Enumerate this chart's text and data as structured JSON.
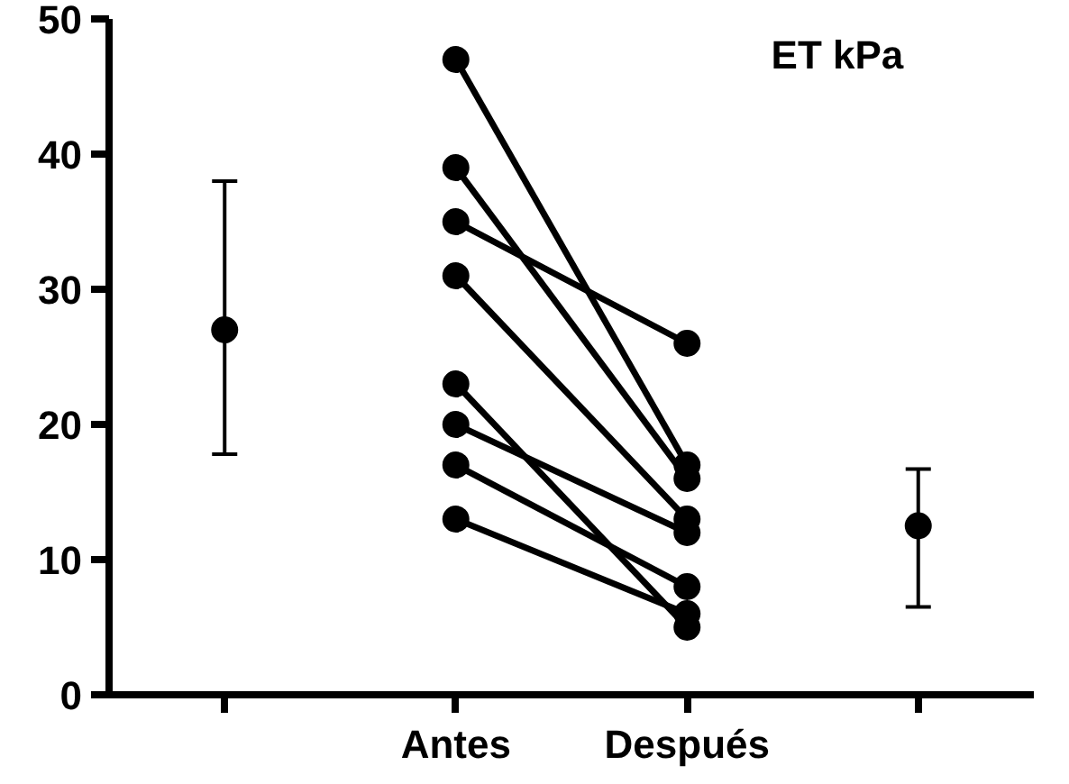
{
  "chart_data": {
    "type": "line",
    "title": "ET kPa",
    "categories": [
      null,
      "Antes",
      "Después",
      null
    ],
    "ylim": [
      0,
      50
    ],
    "yticks": [
      0,
      10,
      20,
      30,
      40,
      50
    ],
    "grid": false,
    "marker": "circle",
    "line_style": "solid",
    "series": [
      {
        "color": "#000000",
        "values": [
          null,
          47,
          17,
          null
        ]
      },
      {
        "color": "#000000",
        "values": [
          null,
          39,
          16,
          null
        ]
      },
      {
        "color": "#000000",
        "values": [
          null,
          35,
          26,
          null
        ]
      },
      {
        "color": "#000000",
        "values": [
          null,
          31,
          13,
          null
        ]
      },
      {
        "color": "#000000",
        "values": [
          null,
          23,
          5,
          null
        ]
      },
      {
        "color": "#000000",
        "values": [
          null,
          20,
          12,
          null
        ]
      },
      {
        "color": "#000000",
        "values": [
          null,
          17,
          8,
          null
        ]
      },
      {
        "color": "#000000",
        "values": [
          null,
          13,
          6,
          null
        ]
      },
      {
        "type": "scatter",
        "color": "#000000",
        "values": [
          27,
          null,
          null,
          12.5
        ],
        "errors": [
          [
            17.8,
            38
          ],
          null,
          null,
          [
            6.5,
            16.7
          ]
        ]
      }
    ]
  }
}
